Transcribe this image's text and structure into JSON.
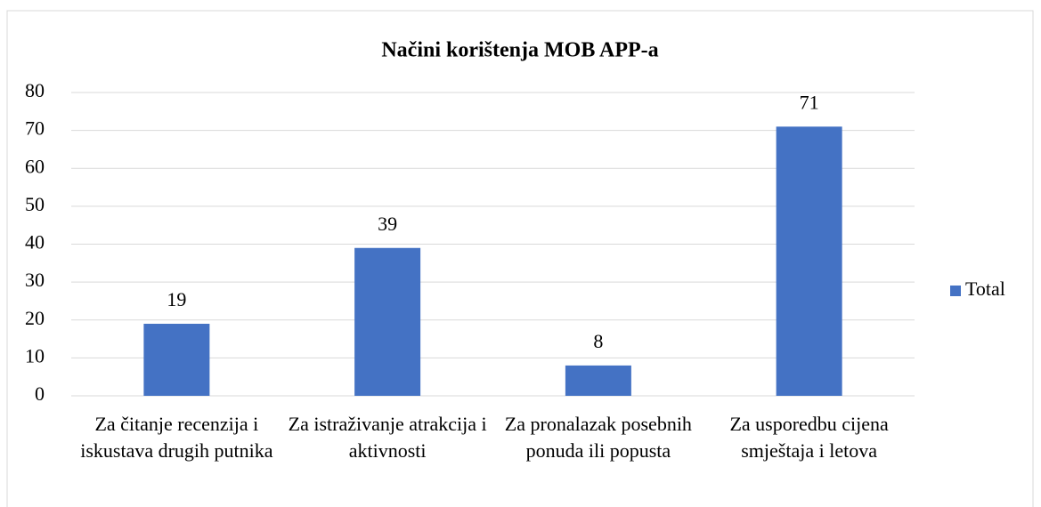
{
  "chart_data": {
    "type": "bar",
    "title": "Načini korištenja MOB APP-a",
    "categories": [
      "Za čitanje recenzija i iskustava drugih putnika",
      "Za istraživanje atrakcija i aktivnosti",
      "Za pronalazak posebnih ponuda ili popusta",
      "Za usporedbu cijena smještaja i letova"
    ],
    "series": [
      {
        "name": "Total",
        "color": "#4472c4",
        "values": [
          19,
          39,
          8,
          71
        ]
      }
    ],
    "ylim": [
      0,
      80
    ],
    "yticks": [
      0,
      10,
      20,
      30,
      40,
      50,
      60,
      70,
      80
    ],
    "grid": true,
    "legend": "right"
  }
}
